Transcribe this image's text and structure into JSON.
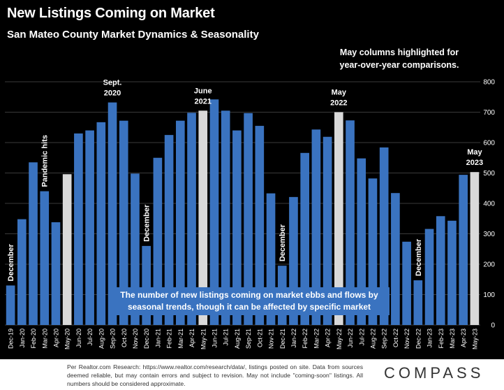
{
  "title": "New Listings Coming on Market",
  "subtitle": "San Mateo County Market Dynamics & Seasonality",
  "highlight_note": "May columns highlighted for year-over-year comparisons.",
  "callout": "The number of new listings coming on market ebbs and flows by seasonal trends, though it can be affected by specific market dynamics.",
  "source_note": "Per Realtor.com Research: https://www.realtor.com/research/data/, listings posted on site. Data from sources deemed reliable, but may contain errors and subject to revision. May not include \"coming-soon\" listings. All numbers should be considered approximate.",
  "logo": "COMPASS",
  "colors": {
    "bar": "#3a73c0",
    "highlight": "#d9d9d9",
    "background": "#000000",
    "text": "#ffffff",
    "grid": "#3a3a3a",
    "callout_bg": "#3a73c0"
  },
  "chart_data": {
    "type": "bar",
    "categories": [
      "Dec-19",
      "Jan-20",
      "Feb-20",
      "Mar-20",
      "Apr-20",
      "May-20",
      "Jun-20",
      "Jul-20",
      "Aug-20",
      "Sep-20",
      "Oct-20",
      "Nov-20",
      "Dec-20",
      "Jan-21",
      "Feb-21",
      "Mar-21",
      "Apr-21",
      "May-21",
      "Jun-21",
      "Jul-21",
      "Aug-21",
      "Sep-21",
      "Oct-21",
      "Nov-21",
      "Dec-21",
      "Jan-22",
      "Feb-22",
      "Mar-22",
      "Apr-22",
      "May-22",
      "Jun-22",
      "Jul-22",
      "Aug-22",
      "Sep-22",
      "Oct-22",
      "Nov-22",
      "Dec-22",
      "Jan-23",
      "Feb-23",
      "Mar-23",
      "Apr-23",
      "May-23"
    ],
    "values": [
      130,
      348,
      535,
      440,
      338,
      496,
      630,
      640,
      667,
      732,
      672,
      498,
      260,
      550,
      625,
      672,
      698,
      705,
      742,
      705,
      640,
      697,
      655,
      433,
      195,
      421,
      566,
      643,
      619,
      700,
      673,
      548,
      482,
      584,
      434,
      274,
      147,
      316,
      358,
      343,
      494,
      503
    ],
    "highlighted": [
      "May-20",
      "May-21",
      "May-22",
      "May-23"
    ],
    "ylim": [
      0,
      800
    ],
    "yticks": [
      0,
      100,
      200,
      300,
      400,
      500,
      600,
      700,
      800
    ],
    "grid": true,
    "legend": "none",
    "annotations": [
      {
        "category": "Dec-19",
        "text": "December",
        "orientation": "vertical"
      },
      {
        "category": "Mar-20",
        "text": "Pandemic hits",
        "orientation": "vertical"
      },
      {
        "category": "Sep-20",
        "lines": [
          "Sept.",
          "2020"
        ],
        "orientation": "horizontal"
      },
      {
        "category": "Dec-20",
        "text": "December",
        "orientation": "vertical"
      },
      {
        "category": "May-21",
        "lines": [
          "June",
          "2021"
        ],
        "orientation": "horizontal"
      },
      {
        "category": "Dec-21",
        "text": "December",
        "orientation": "vertical"
      },
      {
        "category": "May-22",
        "lines": [
          "May",
          "2022"
        ],
        "orientation": "horizontal"
      },
      {
        "category": "Dec-22",
        "text": "December",
        "orientation": "vertical"
      },
      {
        "category": "May-23",
        "lines": [
          "May",
          "2023"
        ],
        "orientation": "horizontal"
      }
    ]
  }
}
